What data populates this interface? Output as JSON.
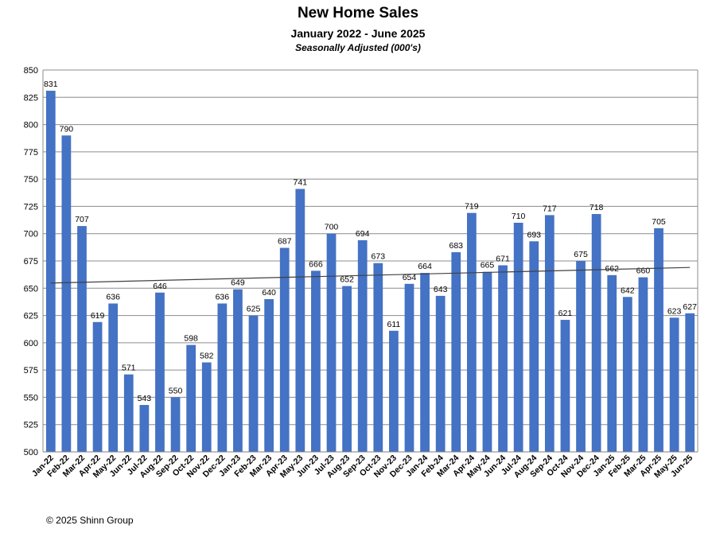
{
  "chart_data": {
    "type": "bar",
    "title": "New Home Sales",
    "subtitle": "January 2022 - June 2025",
    "subsubtitle": "Seasonally Adjusted (000's)",
    "xlabel": "",
    "ylabel": "",
    "ylim": [
      500,
      850
    ],
    "yticks": [
      500,
      525,
      550,
      575,
      600,
      625,
      650,
      675,
      700,
      725,
      750,
      775,
      800,
      825,
      850
    ],
    "grid": true,
    "legend": "none",
    "bar_color": "#4472C4",
    "trendline": {
      "type": "linear",
      "color": "#404040"
    },
    "categories": [
      "Jan-22",
      "Feb-22",
      "Mar-22",
      "Apr-22",
      "May-22",
      "Jun-22",
      "Jul-22",
      "Aug-22",
      "Sep-22",
      "Oct-22",
      "Nov-22",
      "Dec-22",
      "Jan-23",
      "Feb-23",
      "Mar-23",
      "Apr-23",
      "May-23",
      "Jun-23",
      "Jul-23",
      "Aug-23",
      "Sep-23",
      "Oct-23",
      "Nov-23",
      "Dec-23",
      "Jan-24",
      "Feb-24",
      "Mar-24",
      "Apr-24",
      "May-24",
      "Jun-24",
      "Jul-24",
      "Aug-24",
      "Sep-24",
      "Oct-24",
      "Nov-24",
      "Dec-24",
      "Jan-25",
      "Feb-25",
      "Mar-25",
      "Apr-25",
      "May-25",
      "Jun-25"
    ],
    "values": [
      831,
      790,
      707,
      619,
      636,
      571,
      543,
      646,
      550,
      598,
      582,
      636,
      649,
      625,
      640,
      687,
      741,
      666,
      700,
      652,
      694,
      673,
      611,
      654,
      664,
      643,
      683,
      719,
      665,
      671,
      710,
      693,
      717,
      621,
      675,
      718,
      662,
      642,
      660,
      705,
      623,
      627
    ]
  },
  "footer": "© 2025 Shinn Group"
}
